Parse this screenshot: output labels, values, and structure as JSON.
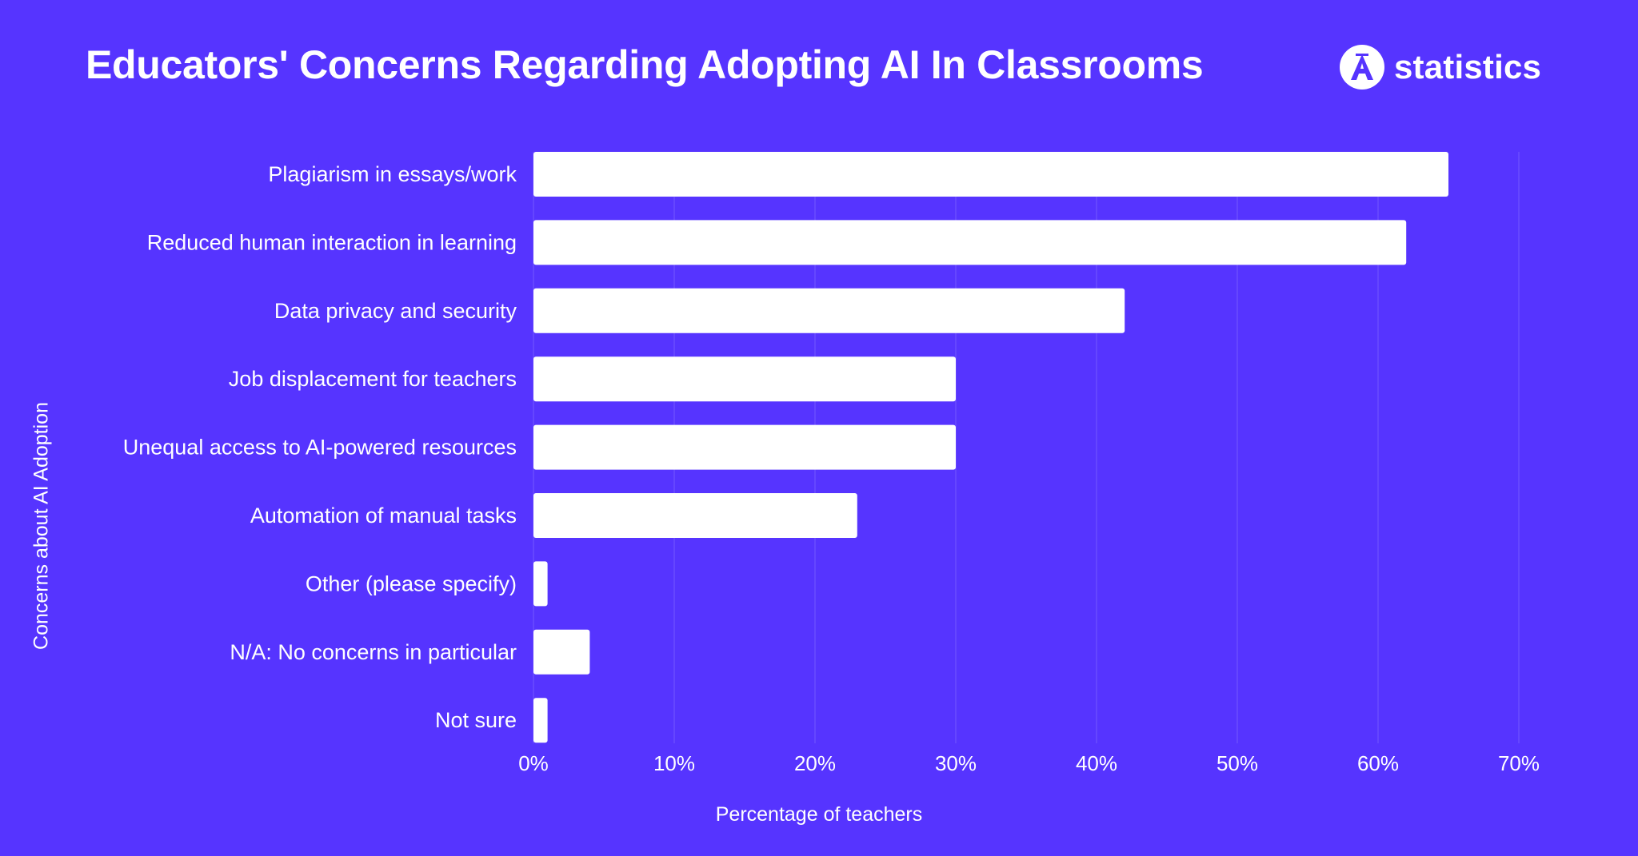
{
  "header": {
    "title": "Educators' Concerns Regarding Adopting AI In Classrooms",
    "brand_text": "statistics",
    "brand_icon": "a-logo-icon"
  },
  "colors": {
    "background": "#5634FF",
    "bar": "#FFFFFF",
    "text": "#FFFFFF",
    "grid": "#6A4CFF",
    "logo_letter": "#5634FF"
  },
  "chart_data": {
    "type": "bar",
    "orientation": "horizontal",
    "title": "Educators' Concerns Regarding Adopting AI In Classrooms",
    "xlabel": "Percentage of teachers",
    "ylabel": "Concerns about AI Adoption",
    "categories": [
      "Plagiarism in essays/work",
      "Reduced human interaction in learning",
      "Data privacy and security",
      "Job displacement for teachers",
      "Unequal access to AI-powered resources",
      "Automation of manual tasks",
      "Other (please specify)",
      "N/A: No concerns in particular",
      "Not sure"
    ],
    "values": [
      65,
      62,
      42,
      30,
      30,
      23,
      1,
      4,
      1
    ],
    "xlim": [
      0,
      70
    ],
    "xticks": [
      0,
      10,
      20,
      30,
      40,
      50,
      60,
      70
    ],
    "xtick_labels": [
      "0%",
      "10%",
      "20%",
      "30%",
      "40%",
      "50%",
      "60%",
      "70%"
    ],
    "grid": true,
    "legend": "none"
  }
}
